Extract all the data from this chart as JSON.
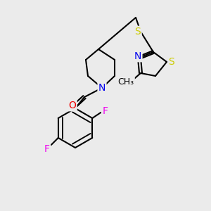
{
  "background_color": "#ebebeb",
  "bond_color": "#000000",
  "bond_width": 1.5,
  "atom_colors": {
    "N": "#0000ee",
    "O": "#ee0000",
    "F": "#ee00ee",
    "S": "#cccc00",
    "C": "#000000"
  },
  "font_size": 9,
  "figsize": [
    3.0,
    3.0
  ],
  "dpi": 100
}
